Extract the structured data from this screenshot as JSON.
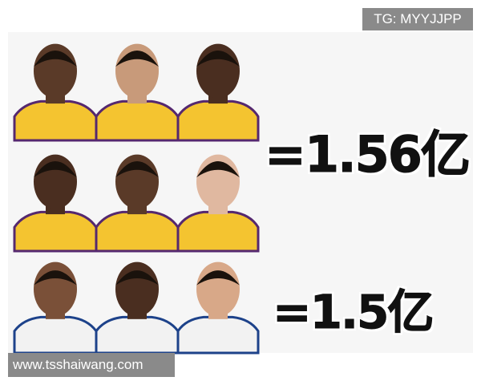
{
  "watermark": "TG: MYYJJPP",
  "groups": [
    {
      "total": "=1.56亿"
    },
    {
      "total": "=1.5亿"
    }
  ],
  "footer": "www.tsshaiwang.com"
}
